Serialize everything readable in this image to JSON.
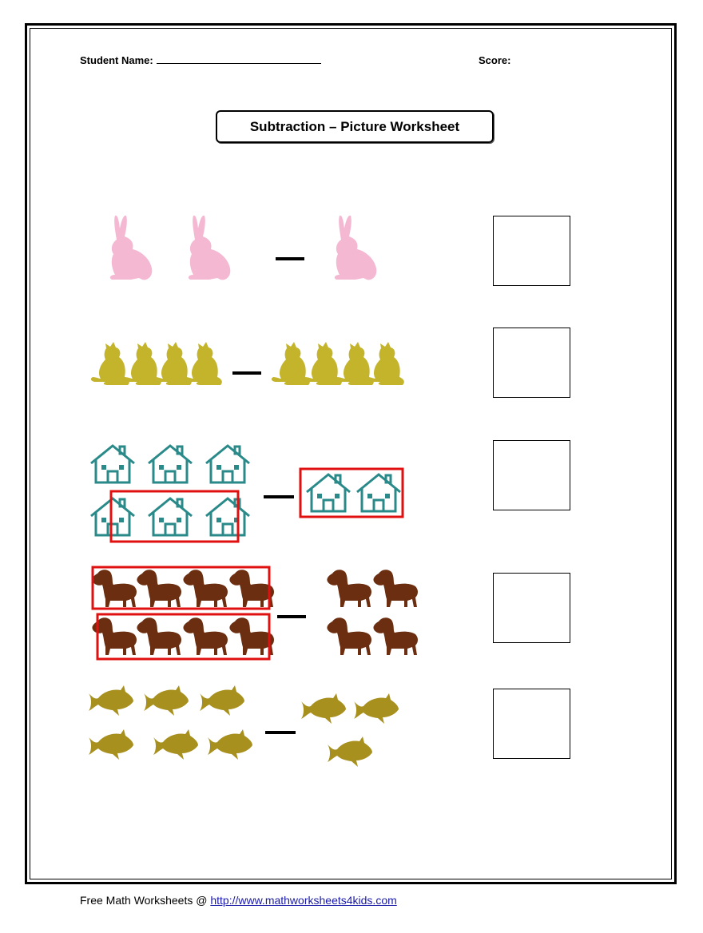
{
  "header": {
    "student_label": "Student Name:",
    "score_label": "Score:"
  },
  "title": "Subtraction – Picture Worksheet",
  "problems": [
    {
      "picture": "rabbit",
      "color": "#f4b8d3",
      "first_count": 2,
      "minus": "—",
      "second_count": 1,
      "circled_left": 0,
      "circled_right": 0
    },
    {
      "picture": "cat",
      "color": "#c4b42c",
      "first_count": 4,
      "minus": "—",
      "second_count": 4,
      "circled_left": 0,
      "circled_right": 0
    },
    {
      "picture": "house",
      "color": "#2a8a8a",
      "first_count": 6,
      "minus": "—",
      "second_count": 2,
      "circled_left": 3,
      "circled_right": 2
    },
    {
      "picture": "horse",
      "color": "#6b2e10",
      "first_count": 8,
      "minus": "—",
      "second_count": 4,
      "circled_left": 8,
      "circled_right": 0
    },
    {
      "picture": "fish",
      "color": "#a8901e",
      "first_count": 6,
      "minus": "—",
      "second_count": 3,
      "circled_left": 0,
      "circled_right": 0
    }
  ],
  "circle_color": "#e01010",
  "footer": {
    "text": "Free Math Worksheets @ ",
    "link": "http://www.mathworksheets4kids.com"
  }
}
